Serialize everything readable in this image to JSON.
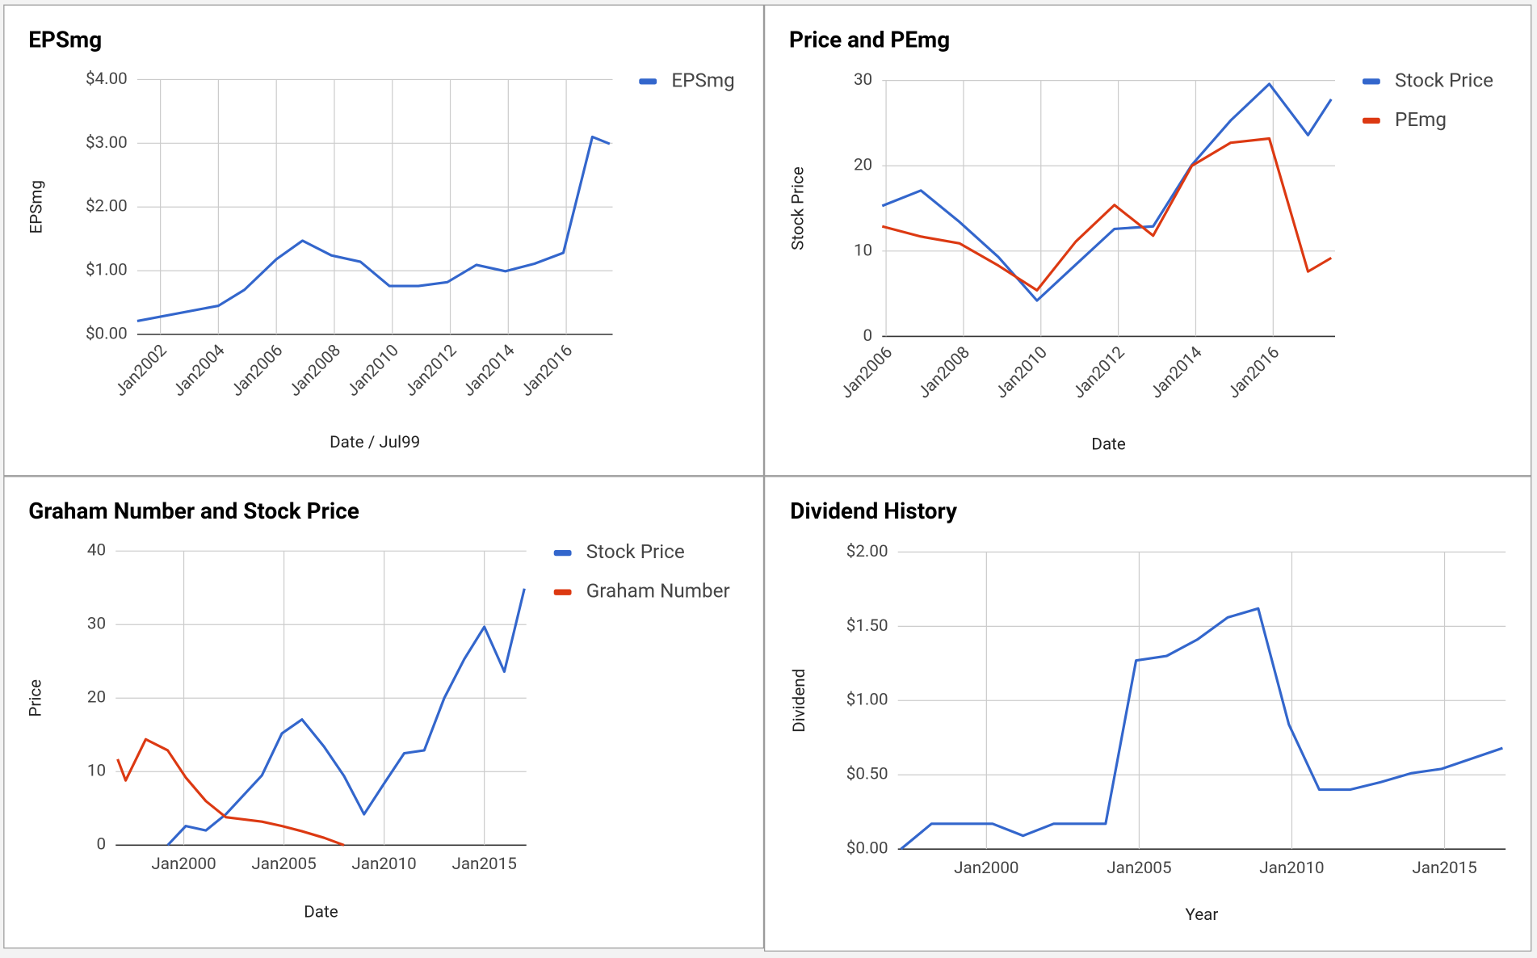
{
  "chart_data": [
    {
      "type": "line",
      "title": "EPSmg",
      "x_label": "Date / Jul99",
      "y_label": "EPSmg",
      "legend": "right",
      "grid": true,
      "x": [
        2001.2,
        2004,
        2004.9,
        2006,
        2006.9,
        2007.9,
        2008.9,
        2009.9,
        2010.9,
        2011.9,
        2012.9,
        2013.9,
        2014.9,
        2015.9,
        2016.9,
        2017.5
      ],
      "series": [
        {
          "name": "EPSmg",
          "color": "#3366cc",
          "values": [
            0.21,
            0.45,
            0.7,
            1.18,
            1.47,
            1.24,
            1.14,
            0.76,
            0.76,
            0.82,
            1.09,
            0.99,
            1.11,
            1.28,
            3.1,
            2.99
          ]
        }
      ],
      "xlim": [
        2001.2,
        2017.6
      ],
      "ylim": [
        0,
        4
      ],
      "xticks": [
        {
          "value": 2002,
          "label": "Jan2002"
        },
        {
          "value": 2004,
          "label": "Jan2004"
        },
        {
          "value": 2006,
          "label": "Jan2006"
        },
        {
          "value": 2008,
          "label": "Jan2008"
        },
        {
          "value": 2010,
          "label": "Jan2010"
        },
        {
          "value": 2012,
          "label": "Jan2012"
        },
        {
          "value": 2014,
          "label": "Jan2014"
        },
        {
          "value": 2016,
          "label": "Jan2016"
        }
      ],
      "yticks": [
        {
          "value": 0,
          "label": "$0.00"
        },
        {
          "value": 1,
          "label": "$1.00"
        },
        {
          "value": 2,
          "label": "$2.00"
        },
        {
          "value": 3,
          "label": "$3.00"
        },
        {
          "value": 4,
          "label": "$4.00"
        }
      ]
    },
    {
      "type": "line",
      "title": "Price and PEmg",
      "x_label": "Date",
      "y_label": "Stock Price",
      "legend": "right",
      "grid": true,
      "x": [
        2005.9,
        2006.9,
        2007.9,
        2008.9,
        2009.9,
        2010.9,
        2011.9,
        2012.9,
        2013.9,
        2014.9,
        2015.9,
        2016.9,
        2017.5
      ],
      "series": [
        {
          "name": "Stock Price",
          "color": "#3366cc",
          "values": [
            15.3,
            17.1,
            13.4,
            9.3,
            4.2,
            8.4,
            12.6,
            12.9,
            20.1,
            25.3,
            29.6,
            23.6,
            27.8
          ]
        },
        {
          "name": "PEmg",
          "color": "#dc3912",
          "values": [
            12.9,
            11.7,
            10.9,
            8.3,
            5.4,
            11.1,
            15.4,
            11.8,
            20.0,
            22.7,
            23.2,
            7.6,
            9.2
          ]
        }
      ],
      "xlim": [
        2005.9,
        2017.6
      ],
      "ylim": [
        0,
        30
      ],
      "xticks": [
        {
          "value": 2006,
          "label": "Jan2006"
        },
        {
          "value": 2008,
          "label": "Jan2008"
        },
        {
          "value": 2010,
          "label": "Jan2010"
        },
        {
          "value": 2012,
          "label": "Jan2012"
        },
        {
          "value": 2014,
          "label": "Jan2014"
        },
        {
          "value": 2016,
          "label": "Jan2016"
        }
      ],
      "yticks": [
        0,
        10,
        20,
        30
      ]
    },
    {
      "type": "line",
      "title": "Graham Number and Stock Price",
      "x_label": "Date",
      "y_label": "Price",
      "legend": "right",
      "grid": true,
      "x": [
        1996.7,
        1997.1,
        1998.1,
        1999.2,
        2000.1,
        2001.1,
        2002.1,
        2003.9,
        2004.9,
        2005.9,
        2007,
        2008,
        2009,
        2010,
        2011,
        2012,
        2013,
        2014,
        2015,
        2016,
        2017
      ],
      "series": [
        {
          "name": "Stock Price",
          "color": "#3366cc",
          "values": [
            0,
            null,
            null,
            0,
            2.6,
            2.0,
            4.2,
            9.5,
            15.2,
            17.1,
            13.4,
            9.4,
            4.2,
            8.4,
            12.5,
            12.9,
            20.0,
            25.3,
            29.7,
            23.6,
            34.9
          ]
        },
        {
          "name": "Graham Number",
          "color": "#dc3912",
          "values": [
            11.7,
            8.8,
            14.4,
            12.9,
            9.2,
            6.0,
            3.8,
            3.2,
            2.6,
            1.9,
            1.0,
            0,
            null,
            null,
            null,
            null,
            null,
            null,
            null,
            null,
            null
          ]
        }
      ],
      "xlim": [
        1996.6,
        2017.1
      ],
      "ylim": [
        0,
        40
      ],
      "xticks": [
        {
          "value": 2000,
          "label": "Jan2000"
        },
        {
          "value": 2005,
          "label": "Jan2005"
        },
        {
          "value": 2010,
          "label": "Jan2010"
        },
        {
          "value": 2015,
          "label": "Jan2015"
        }
      ],
      "yticks": [
        0,
        10,
        20,
        30,
        40
      ]
    },
    {
      "type": "line",
      "title": "Dividend History",
      "x_label": "Year",
      "y_label": "Dividend",
      "grid": true,
      "x": [
        1997.2,
        1998.2,
        1999.2,
        2000.2,
        2001.2,
        2002.2,
        2003.9,
        2004.9,
        2005.9,
        2006.9,
        2007.9,
        2008.9,
        2009.9,
        2010.9,
        2011.9,
        2012.9,
        2013.9,
        2014.9,
        2016.9
      ],
      "series": [
        {
          "color": "#3366cc",
          "values": [
            0,
            0.17,
            0.17,
            0.17,
            0.09,
            0.17,
            0.17,
            1.27,
            1.3,
            1.41,
            1.56,
            1.62,
            0.84,
            0.4,
            0.4,
            0.45,
            0.51,
            0.54,
            0.68
          ]
        }
      ],
      "xlim": [
        1997.1,
        2017.0
      ],
      "ylim": [
        0,
        2
      ],
      "xticks": [
        {
          "value": 2000,
          "label": "Jan2000"
        },
        {
          "value": 2005,
          "label": "Jan2005"
        },
        {
          "value": 2010,
          "label": "Jan2010"
        },
        {
          "value": 2015,
          "label": "Jan2015"
        }
      ],
      "yticks": [
        {
          "value": 0,
          "label": "$0.00"
        },
        {
          "value": 0.5,
          "label": "$0.50"
        },
        {
          "value": 1,
          "label": "$1.00"
        },
        {
          "value": 1.5,
          "label": "$1.50"
        },
        {
          "value": 2,
          "label": "$2.00"
        }
      ]
    }
  ]
}
